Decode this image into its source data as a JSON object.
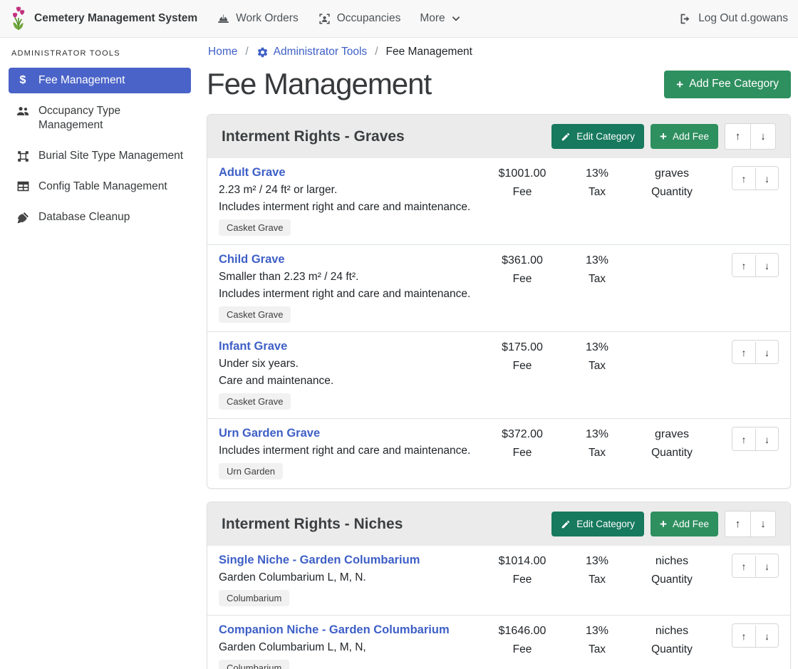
{
  "colors": {
    "accent_blue": "#4a63c8",
    "link_blue": "#3e5fc6",
    "green": "#2e8f5f",
    "teal": "#17795e",
    "header_gray": "#ebebeb"
  },
  "navbar": {
    "brand": "Cemetery Management System",
    "items": [
      {
        "label": "Work Orders",
        "icon": "hard-hat-icon"
      },
      {
        "label": "Occupancies",
        "icon": "occupancy-icon"
      },
      {
        "label": "More",
        "icon": "chevron-down-icon"
      }
    ],
    "logout_label": "Log Out d.gowans"
  },
  "sidebar": {
    "header": "ADMINISTRATOR TOOLS",
    "items": [
      {
        "label": "Fee Management",
        "icon": "dollar-icon",
        "active": true
      },
      {
        "label": "Occupancy Type Management",
        "icon": "people-icon",
        "active": false
      },
      {
        "label": "Burial Site Type Management",
        "icon": "vector-square-icon",
        "active": false
      },
      {
        "label": "Config Table Management",
        "icon": "table-icon",
        "active": false
      },
      {
        "label": "Database Cleanup",
        "icon": "broom-icon",
        "active": false
      }
    ]
  },
  "breadcrumb": {
    "separator": "/",
    "items": [
      {
        "label": "Home"
      },
      {
        "label": "Administrator Tools",
        "icon": "gear-icon"
      },
      {
        "label": "Fee Management"
      }
    ]
  },
  "page": {
    "title": "Fee Management",
    "add_category_label": "Add Fee Category"
  },
  "category_actions": {
    "edit_label": "Edit Category",
    "add_fee_label": "Add Fee"
  },
  "labels": {
    "fee": "Fee",
    "tax": "Tax",
    "quantity": "Quantity"
  },
  "icons": {
    "up_arrow": "↑",
    "down_arrow": "↓",
    "plus": "+"
  },
  "categories": [
    {
      "title": "Interment Rights - Graves",
      "fees": [
        {
          "name": "Adult Grave",
          "descriptions": [
            "2.23 m² / 24 ft² or larger.",
            "Includes interment right and care and maintenance."
          ],
          "badge": "Casket Grave",
          "fee": "$1001.00",
          "tax": "13%",
          "unit": "graves"
        },
        {
          "name": "Child Grave",
          "descriptions": [
            "Smaller than 2.23 m² / 24 ft².",
            "Includes interment right and care and maintenance."
          ],
          "badge": "Casket Grave",
          "fee": "$361.00",
          "tax": "13%",
          "unit": ""
        },
        {
          "name": "Infant Grave",
          "descriptions": [
            "Under six years.",
            "Care and maintenance."
          ],
          "badge": "Casket Grave",
          "fee": "$175.00",
          "tax": "13%",
          "unit": ""
        },
        {
          "name": "Urn Garden Grave",
          "descriptions": [
            "Includes interment right and care and maintenance."
          ],
          "badge": "Urn Garden",
          "fee": "$372.00",
          "tax": "13%",
          "unit": "graves"
        }
      ]
    },
    {
      "title": "Interment Rights - Niches",
      "fees": [
        {
          "name": "Single Niche - Garden Columbarium",
          "descriptions": [
            "Garden Columbarium L, M, N."
          ],
          "badge": "Columbarium",
          "fee": "$1014.00",
          "tax": "13%",
          "unit": "niches"
        },
        {
          "name": "Companion Niche - Garden Columbarium",
          "descriptions": [
            "Garden Columbarium L, M, N,"
          ],
          "badge": "Columbarium",
          "fee": "$1646.00",
          "tax": "13%",
          "unit": "niches"
        }
      ]
    }
  ]
}
